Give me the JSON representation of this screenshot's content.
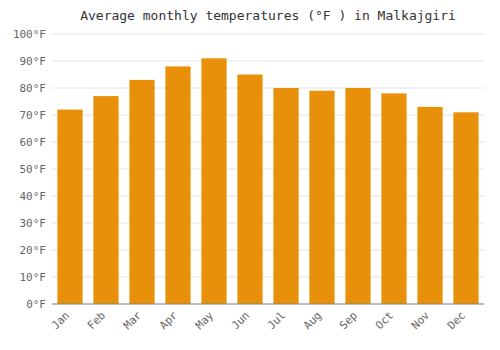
{
  "chart_data": {
    "type": "bar",
    "title": "Average monthly temperatures (°F ) in Malkajgiri",
    "categories": [
      "Jan",
      "Feb",
      "Mar",
      "Apr",
      "May",
      "Jun",
      "Jul",
      "Aug",
      "Sep",
      "Oct",
      "Nov",
      "Dec"
    ],
    "values": [
      72,
      77,
      83,
      88,
      91,
      85,
      80,
      79,
      80,
      78,
      73,
      71
    ],
    "color": "#E8900A",
    "ylim": [
      0,
      100
    ],
    "yticks": [
      {
        "value": 0,
        "label": "0°F"
      },
      {
        "value": 10,
        "label": "10°F"
      },
      {
        "value": 20,
        "label": "20°F"
      },
      {
        "value": 30,
        "label": "30°F"
      },
      {
        "value": 40,
        "label": "40°F"
      },
      {
        "value": 50,
        "label": "50°F"
      },
      {
        "value": 60,
        "label": "60°F"
      },
      {
        "value": 70,
        "label": "70°F"
      },
      {
        "value": 80,
        "label": "80°F"
      },
      {
        "value": 90,
        "label": "90°F"
      },
      {
        "value": 100,
        "label": "100°F"
      }
    ],
    "grid": true
  }
}
